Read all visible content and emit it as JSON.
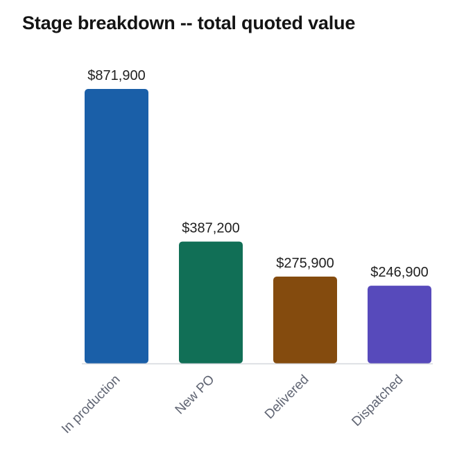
{
  "chart_data": {
    "type": "bar",
    "title": "Stage breakdown -- total quoted value",
    "xlabel": "",
    "ylabel": "",
    "categories": [
      "In production",
      "New PO",
      "Delivered",
      "Dispatched"
    ],
    "values": [
      871900,
      387200,
      275900,
      246900
    ],
    "value_labels": [
      "$871,900",
      "$387,200",
      "$275,900",
      "$246,900"
    ],
    "colors": [
      "#1a5fa8",
      "#116f56",
      "#844b0e",
      "#574abb"
    ],
    "ylim": [
      0,
      871900
    ],
    "grid": false,
    "legend": "none"
  }
}
